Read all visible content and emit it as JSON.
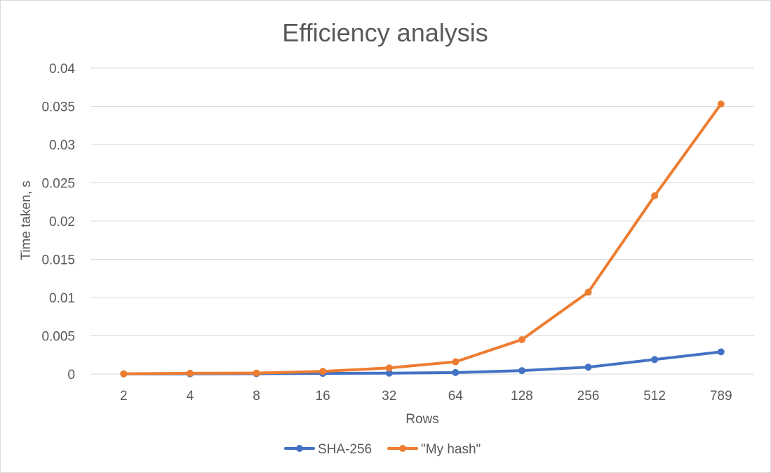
{
  "chart_data": {
    "type": "line",
    "title": "Efficiency analysis",
    "xlabel": "Rows",
    "ylabel": "Time taken, s",
    "categories": [
      "2",
      "4",
      "8",
      "16",
      "32",
      "64",
      "128",
      "256",
      "512",
      "789"
    ],
    "ylim": [
      0,
      0.04
    ],
    "yticks": [
      "0",
      "0.005",
      "0.01",
      "0.015",
      "0.02",
      "0.025",
      "0.03",
      "0.035",
      "0.04"
    ],
    "grid": true,
    "legend_position": "bottom",
    "series": [
      {
        "name": "SHA-256",
        "color": "#4472c4",
        "values": [
          2e-05,
          3e-05,
          5e-05,
          8e-05,
          0.00012,
          0.0002,
          0.00045,
          0.0009,
          0.0019,
          0.0029
        ]
      },
      {
        "name": "\"My hash\"",
        "color": "#ed7d31",
        "values": [
          3e-05,
          0.0001,
          0.00013,
          0.00035,
          0.0008,
          0.0016,
          0.0045,
          0.0107,
          0.0233,
          0.0353
        ]
      }
    ]
  }
}
